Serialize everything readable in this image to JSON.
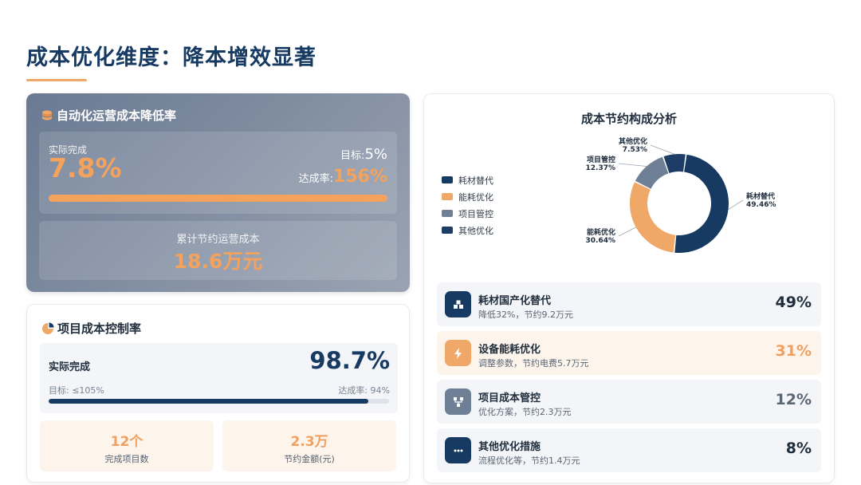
{
  "page": {
    "title": "成本优化维度：降本增效显著",
    "accent_color": "#f0a868",
    "primary_color": "#173a63"
  },
  "automation_card": {
    "icon": "coins-icon",
    "title": "自动化运营成本降低率",
    "actual_label": "实际完成",
    "actual_value": "7.8%",
    "target_label": "目标:",
    "target_value": "5%",
    "rate_label": "达成率:",
    "rate_value": "156%",
    "progress_fraction": 1.0,
    "cumulative_label": "累计节约运营成本",
    "cumulative_value": "18.6万元"
  },
  "project_card": {
    "icon": "pie-chart-icon",
    "title": "项目成本控制率",
    "actual_label": "实际完成",
    "actual_value": "98.7%",
    "target_text": "目标: ≤105%",
    "rate_text": "达成率: 94%",
    "progress_fraction": 0.94,
    "stats": [
      {
        "value": "12个",
        "label": "完成项目数"
      },
      {
        "value": "2.3万",
        "label": "节约金额(元)"
      }
    ]
  },
  "chart_data": {
    "type": "pie",
    "title": "成本节约构成分析",
    "donut": true,
    "legend_position": "left",
    "slices": [
      {
        "name": "耗材替代",
        "value": 49.46,
        "label": "49.46%",
        "color": "#173a63"
      },
      {
        "name": "能耗优化",
        "value": 30.64,
        "label": "30.64%",
        "color": "#f0a868"
      },
      {
        "name": "项目管控",
        "value": 12.37,
        "label": "12.37%",
        "color": "#6f7f96"
      },
      {
        "name": "其他优化",
        "value": 7.53,
        "label": "7.53%",
        "color": "#1e3d66"
      }
    ]
  },
  "breakdown": [
    {
      "icon": "boxes-icon",
      "title": "耗材国产化替代",
      "subtitle": "降低32%，节约9.2万元",
      "percent": "49%",
      "icon_bg": "#173a63",
      "bg": "#f3f5f8",
      "pct_color": "#1f2d3d"
    },
    {
      "icon": "lightning-icon",
      "title": "设备能耗优化",
      "subtitle": "调整参数，节约电费5.7万元",
      "percent": "31%",
      "icon_bg": "#f0a868",
      "bg": "#fdf4ec",
      "pct_color": "#f0a060"
    },
    {
      "icon": "project-tree-icon",
      "title": "项目成本管控",
      "subtitle": "优化方案，节约2.3万元",
      "percent": "12%",
      "icon_bg": "#6f7f96",
      "bg": "#f3f5f8",
      "pct_color": "#5c6674"
    },
    {
      "icon": "more-dots-icon",
      "title": "其他优化措施",
      "subtitle": "流程优化等，节约1.4万元",
      "percent": "8%",
      "icon_bg": "#173a63",
      "bg": "#f3f5f8",
      "pct_color": "#1f2d3d"
    }
  ]
}
